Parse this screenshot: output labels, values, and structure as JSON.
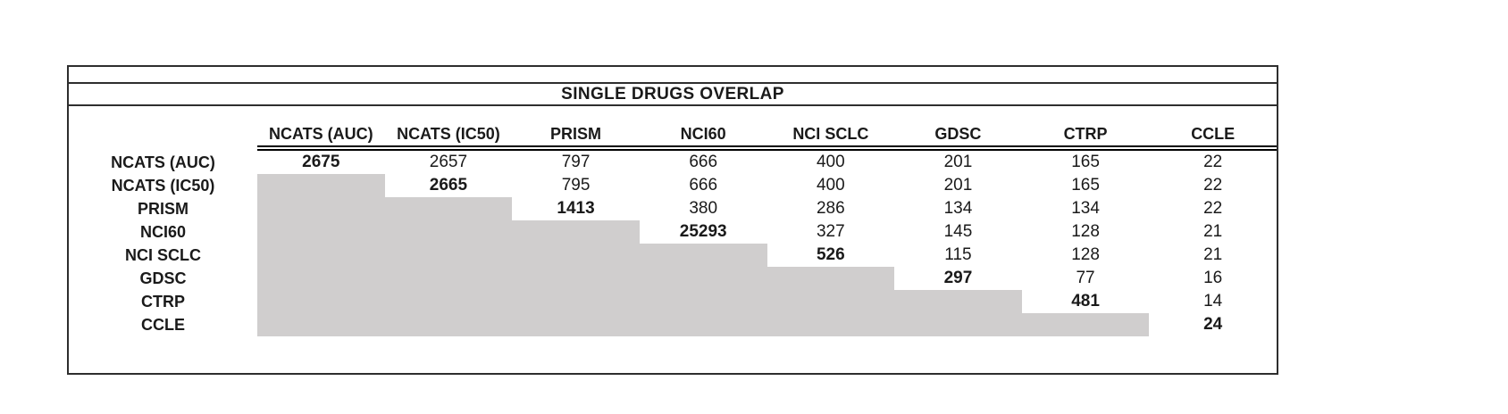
{
  "title": "SINGLE DRUGS OVERLAP",
  "colors": {
    "shaded_cell": "#d0cece",
    "border": "#2e2e2e",
    "double_rule": "#000000",
    "text": "#1a1a1a",
    "background": "#ffffff"
  },
  "chart_data": {
    "type": "table",
    "title": "SINGLE DRUGS OVERLAP",
    "columns": [
      "NCATS (AUC)",
      "NCATS (IC50)",
      "PRISM",
      "NCI60",
      "NCI SCLC",
      "GDSC",
      "CTRP",
      "CCLE"
    ],
    "rows": [
      "NCATS (AUC)",
      "NCATS (IC50)",
      "PRISM",
      "NCI60",
      "NCI SCLC",
      "GDSC",
      "CTRP",
      "CCLE"
    ],
    "matrix": [
      [
        "2675",
        "2657",
        "797",
        "666",
        "400",
        "201",
        "165",
        "22"
      ],
      [
        null,
        "2665",
        "795",
        "666",
        "400",
        "201",
        "165",
        "22"
      ],
      [
        null,
        null,
        "1413",
        "380",
        "286",
        "134",
        "134",
        "22"
      ],
      [
        null,
        null,
        null,
        "25293",
        "327",
        "145",
        "128",
        "21"
      ],
      [
        null,
        null,
        null,
        null,
        "526",
        "115",
        "128",
        "21"
      ],
      [
        null,
        null,
        null,
        null,
        null,
        "297",
        "77",
        "16"
      ],
      [
        null,
        null,
        null,
        null,
        null,
        null,
        "481",
        "14"
      ],
      [
        null,
        null,
        null,
        null,
        null,
        null,
        null,
        "24"
      ]
    ],
    "layout_hints": {
      "diagonal_values_bold": true,
      "lower_triangle": "shaded gray, empty",
      "header_rule": "double line under column headers only",
      "grid": "off"
    }
  }
}
